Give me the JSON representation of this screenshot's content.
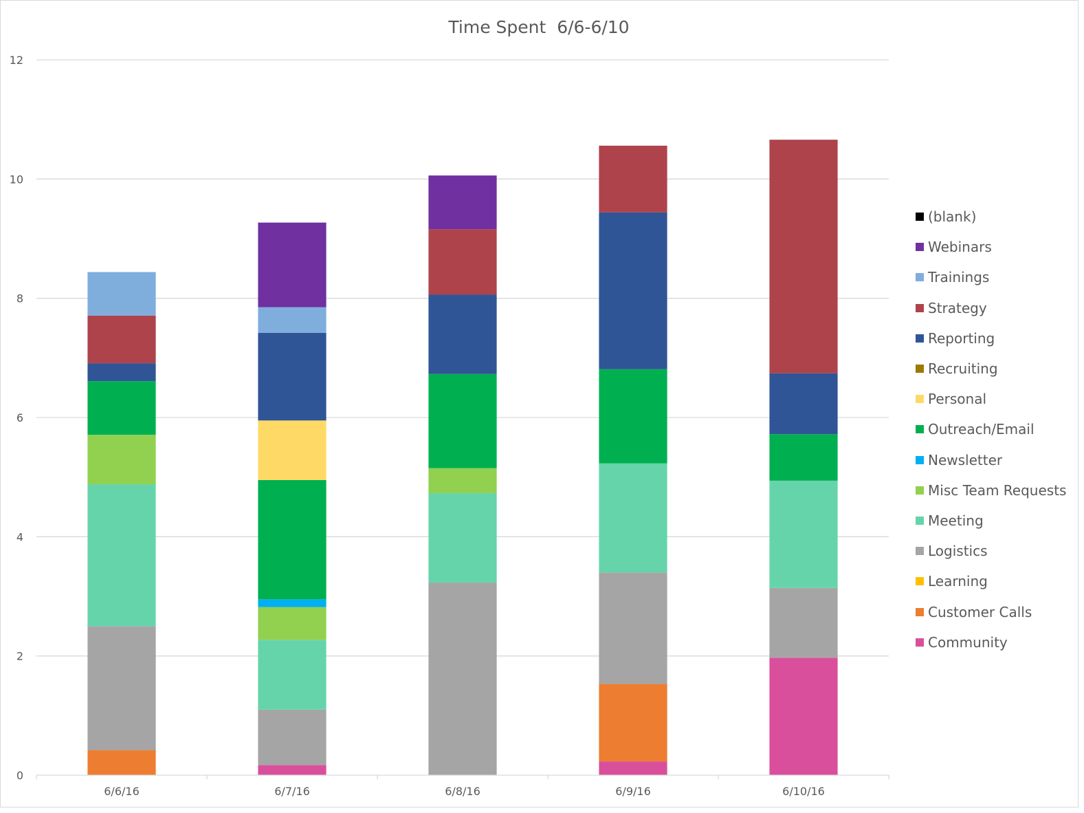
{
  "chart_data": {
    "type": "bar",
    "stacked": true,
    "title": "Time Spent  6/6-6/10",
    "xlabel": "",
    "ylabel": "",
    "ylim": [
      0,
      12
    ],
    "yticks": [
      0,
      2,
      4,
      6,
      8,
      10,
      12
    ],
    "grid": true,
    "legend_position": "right",
    "categories": [
      "6/6/16",
      "6/7/16",
      "6/8/16",
      "6/9/16",
      "6/10/16"
    ],
    "series": [
      {
        "name": "Community",
        "color": "#d94f9c",
        "values": [
          0,
          0.17,
          0,
          0.23,
          1.97
        ]
      },
      {
        "name": "Customer Calls",
        "color": "#ed7d31",
        "values": [
          0.42,
          0,
          0,
          1.3,
          0
        ]
      },
      {
        "name": "Learning",
        "color": "#ffc000",
        "values": [
          0,
          0,
          0,
          0,
          0
        ]
      },
      {
        "name": "Logistics",
        "color": "#a5a5a5",
        "values": [
          2.08,
          0.93,
          3.23,
          1.87,
          1.17
        ]
      },
      {
        "name": "Meeting",
        "color": "#66d4ab",
        "values": [
          2.38,
          1.17,
          1.5,
          1.83,
          1.8
        ]
      },
      {
        "name": "Misc Team Requests",
        "color": "#92d050",
        "values": [
          0.83,
          0.55,
          0.42,
          0,
          0
        ]
      },
      {
        "name": "Newsletter",
        "color": "#00b0f0",
        "values": [
          0,
          0.13,
          0,
          0,
          0
        ]
      },
      {
        "name": "Outreach/Email",
        "color": "#00b050",
        "values": [
          0.9,
          2.0,
          1.58,
          1.58,
          0.78
        ]
      },
      {
        "name": "Personal",
        "color": "#ffd966",
        "values": [
          0,
          1.0,
          0,
          0,
          0
        ]
      },
      {
        "name": "Recruiting",
        "color": "#9c7a00",
        "values": [
          0,
          0,
          0,
          0,
          0
        ]
      },
      {
        "name": "Reporting",
        "color": "#2f5597",
        "values": [
          0.3,
          1.47,
          1.33,
          2.63,
          1.02
        ]
      },
      {
        "name": "Strategy",
        "color": "#ae434c",
        "values": [
          0.8,
          0,
          1.1,
          1.12,
          3.92
        ]
      },
      {
        "name": "Trainings",
        "color": "#7faedd",
        "values": [
          0.73,
          0.43,
          0,
          0,
          0
        ]
      },
      {
        "name": "Webinars",
        "color": "#7030a0",
        "values": [
          0,
          1.42,
          0.9,
          0,
          0
        ]
      },
      {
        "name": "(blank)",
        "color": "#000000",
        "values": [
          0,
          0,
          0,
          0,
          0
        ]
      }
    ]
  }
}
